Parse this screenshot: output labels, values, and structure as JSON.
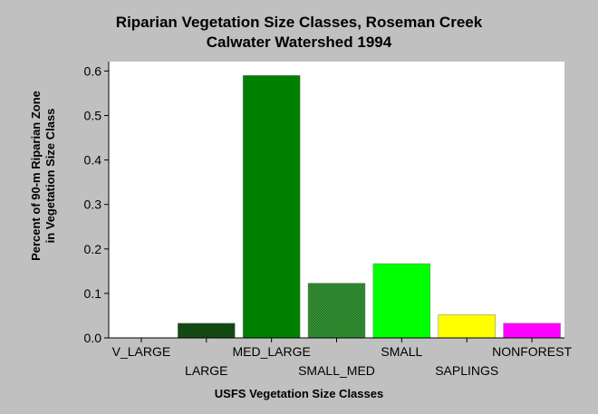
{
  "chart_data": {
    "type": "bar",
    "title_line1": "Riparian Vegetation Size Classes, Roseman Creek",
    "title_line2": "Calwater Watershed 1994",
    "xlabel": "USFS Vegetation Size Classes",
    "ylabel": "Percent of 90-m Riparian Zone in Vegetation Size Class",
    "categories": [
      "V_LARGE",
      "LARGE",
      "MED_LARGE",
      "SMALL_MED",
      "SMALL",
      "SAPLINGS",
      "NONFOREST"
    ],
    "values": [
      0.0,
      0.033,
      0.59,
      0.123,
      0.167,
      0.052,
      0.033
    ],
    "colors": [
      "#006400",
      "#1a5c1a",
      "#008000",
      "#2e8b2e",
      "#00ff00",
      "#ffff00",
      "#ff00ff"
    ],
    "hatched": [
      false,
      true,
      false,
      true,
      false,
      false,
      false
    ],
    "ylim": [
      0,
      0.62
    ],
    "yticks": [
      "0.0",
      "0.1",
      "0.2",
      "0.3",
      "0.4",
      "0.5",
      "0.6"
    ],
    "grid": false,
    "legend": "none"
  }
}
